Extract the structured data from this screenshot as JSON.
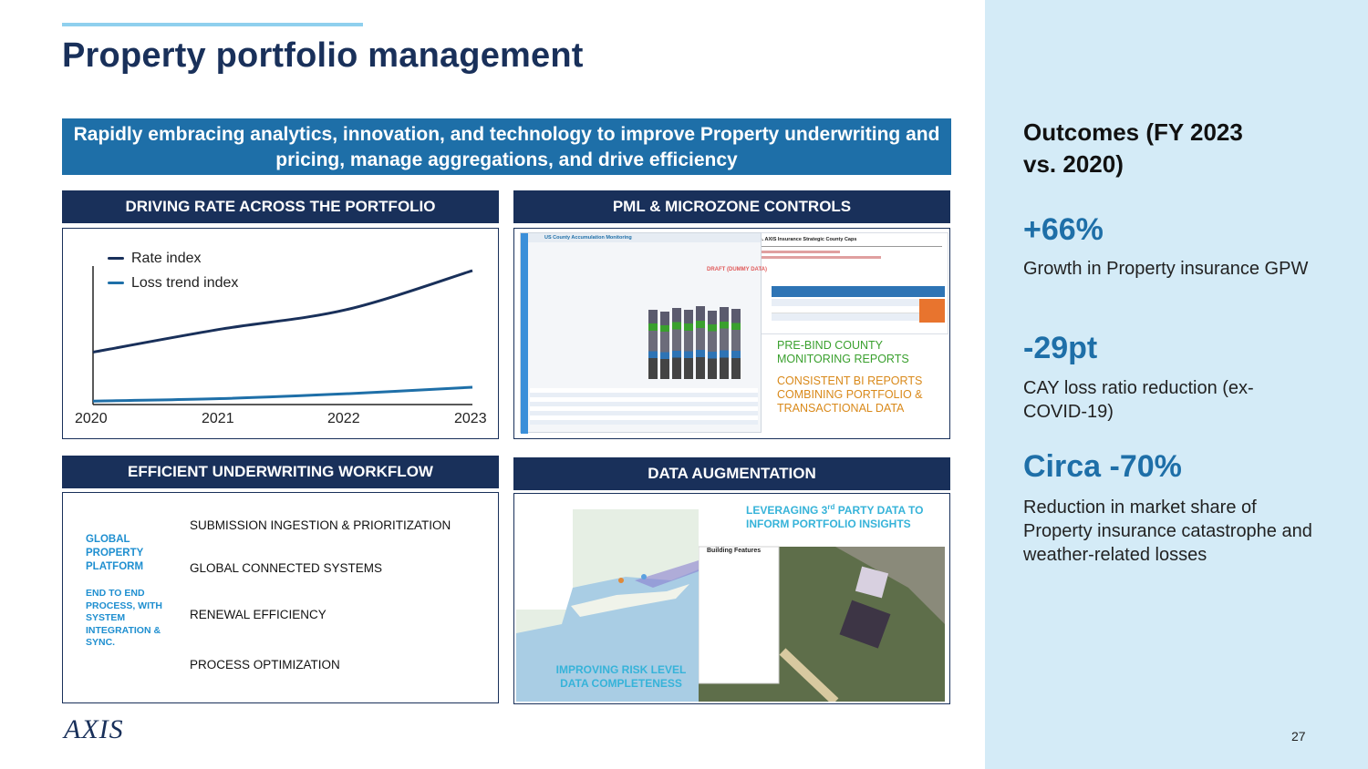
{
  "title": "Property portfolio management",
  "banner": "Rapidly embracing analytics, innovation, and technology to improve Property underwriting and pricing, manage aggregations, and drive efficiency",
  "sections": {
    "rate": "DRIVING RATE ACROSS THE PORTFOLIO",
    "pml": "PML & MICROZONE CONTROLS",
    "workflow": "EFFICIENT UNDERWRITING WORKFLOW",
    "data": "DATA AUGMENTATION"
  },
  "chart_data": {
    "type": "line",
    "title": "",
    "x": [
      "2020",
      "2021",
      "2022",
      "2023"
    ],
    "series": [
      {
        "name": "Rate index",
        "color": "#19305a",
        "values": [
          100,
          128,
          152,
          200
        ]
      },
      {
        "name": "Loss trend index",
        "color": "#1e6fa8",
        "values": [
          40,
          43,
          49,
          57
        ]
      }
    ],
    "xlabel": "",
    "ylabel": "",
    "ylim": [
      38,
      200
    ],
    "grid": false,
    "legend": "top-left"
  },
  "pml": {
    "report_title": "Assessment of Account Exposure vs. AXIS Insurance Strategic County Caps",
    "dash_title": "US County Accumulation Monitoring",
    "draft_label": "DRAFT (DUMMY DATA)",
    "note1": "PRE-BIND COUNTY MONITORING REPORTS",
    "note2": "CONSISTENT BI REPORTS COMBINING PORTFOLIO & TRANSACTIONAL DATA"
  },
  "workflow": {
    "side1": "GLOBAL PROPERTY PLATFORM",
    "side2": "END TO END PROCESS, WITH SYSTEM INTEGRATION & SYNC.",
    "items": [
      "SUBMISSION INGESTION & PRIORITIZATION",
      "GLOBAL CONNECTED SYSTEMS",
      "RENEWAL EFFICIENCY",
      "PROCESS OPTIMIZATION"
    ]
  },
  "data_aug": {
    "note_top_a": "LEVERAGING 3",
    "note_top_sup": "rd",
    "note_top_b": " PARTY DATA TO INFORM PORTFOLIO INSIGHTS",
    "note_bottom": "IMPROVING RISK LEVEL DATA COMPLETENESS",
    "panel_title": "Building Features"
  },
  "outcomes": {
    "title": "Outcomes (FY 2023 vs. 2020)",
    "metrics": [
      {
        "value": "+66%",
        "desc": "Growth in Property insurance GPW"
      },
      {
        "value": "-29pt",
        "desc": "CAY loss ratio reduction (ex-COVID-19)"
      },
      {
        "value": "Circa -70%",
        "desc": "Reduction in market share of Property insurance catastrophe and weather-related losses"
      }
    ]
  },
  "logo": "AXIS",
  "page_number": "27",
  "colors": {
    "navy": "#19305a",
    "blue": "#1e6fa8",
    "light": "#d4ebf7",
    "accent_green": "#3aa02e",
    "accent_orange": "#d9891a",
    "accent_cyan": "#1f8fd0"
  }
}
